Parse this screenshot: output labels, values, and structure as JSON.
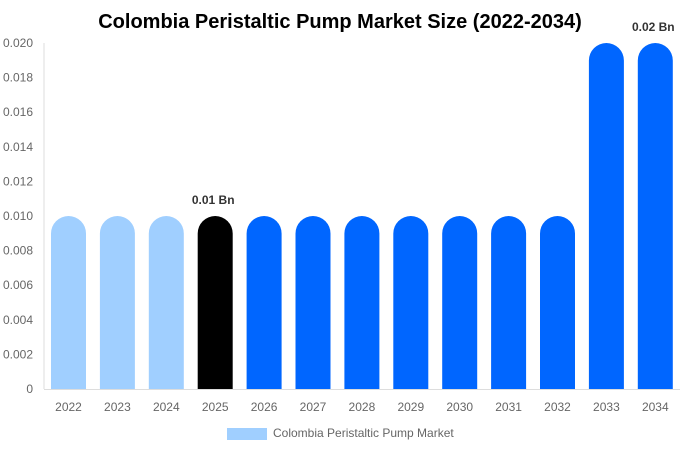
{
  "chart_data": {
    "type": "bar",
    "title": "Colombia Peristaltic Pump Market Size (2022-2034)",
    "categories": [
      "2022",
      "2023",
      "2024",
      "2025",
      "2026",
      "2027",
      "2028",
      "2029",
      "2030",
      "2031",
      "2032",
      "2033",
      "2034"
    ],
    "series": [
      {
        "name": "Colombia Peristaltic Pump Market",
        "values": [
          0.01,
          0.01,
          0.01,
          0.01,
          0.01,
          0.01,
          0.01,
          0.01,
          0.01,
          0.01,
          0.01,
          0.02,
          0.02
        ]
      }
    ],
    "bar_colors": [
      "#a0cfff",
      "#a0cfff",
      "#a0cfff",
      "#000000",
      "#0066ff",
      "#0066ff",
      "#0066ff",
      "#0066ff",
      "#0066ff",
      "#0066ff",
      "#0066ff",
      "#0066ff",
      "#0066ff"
    ],
    "data_labels": {
      "2025": "0.01 Bn",
      "2034": "0.02 Bn"
    },
    "yticks": [
      "0",
      "0.002",
      "0.004",
      "0.006",
      "0.008",
      "0.010",
      "0.012",
      "0.014",
      "0.016",
      "0.018",
      "0.020"
    ],
    "ylim": [
      0,
      0.02
    ],
    "xlabel": "",
    "ylabel": "",
    "grid": false,
    "legend": {
      "position": "bottom",
      "color": "#a0cfff"
    }
  }
}
